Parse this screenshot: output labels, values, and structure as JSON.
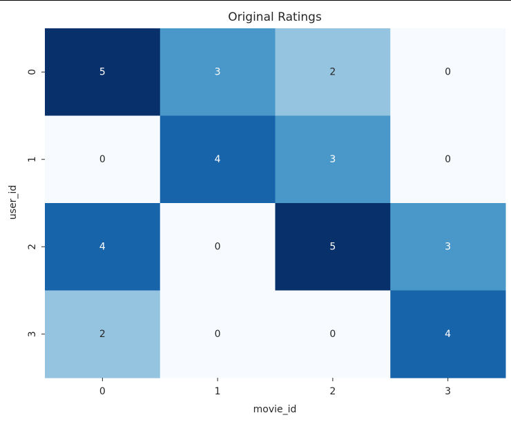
{
  "chart_data": {
    "type": "heatmap",
    "title": "Original Ratings",
    "xlabel": "movie_id",
    "ylabel": "user_id",
    "x_categories": [
      "0",
      "1",
      "2",
      "3"
    ],
    "y_categories": [
      "0",
      "1",
      "2",
      "3"
    ],
    "values": [
      [
        5,
        3,
        2,
        0
      ],
      [
        0,
        4,
        3,
        0
      ],
      [
        4,
        0,
        5,
        3
      ],
      [
        2,
        0,
        0,
        4
      ]
    ],
    "value_range": [
      0,
      5
    ],
    "colormap": "Blues",
    "annotated": true,
    "colorbar": false,
    "grid": false,
    "color_scale": {
      "0": "#f7fbff",
      "2": "#94c4df",
      "3": "#4a98c9",
      "4": "#1764ab",
      "5": "#08306b"
    },
    "text_colors": {
      "light": "#ffffff",
      "dark": "#262626"
    }
  }
}
